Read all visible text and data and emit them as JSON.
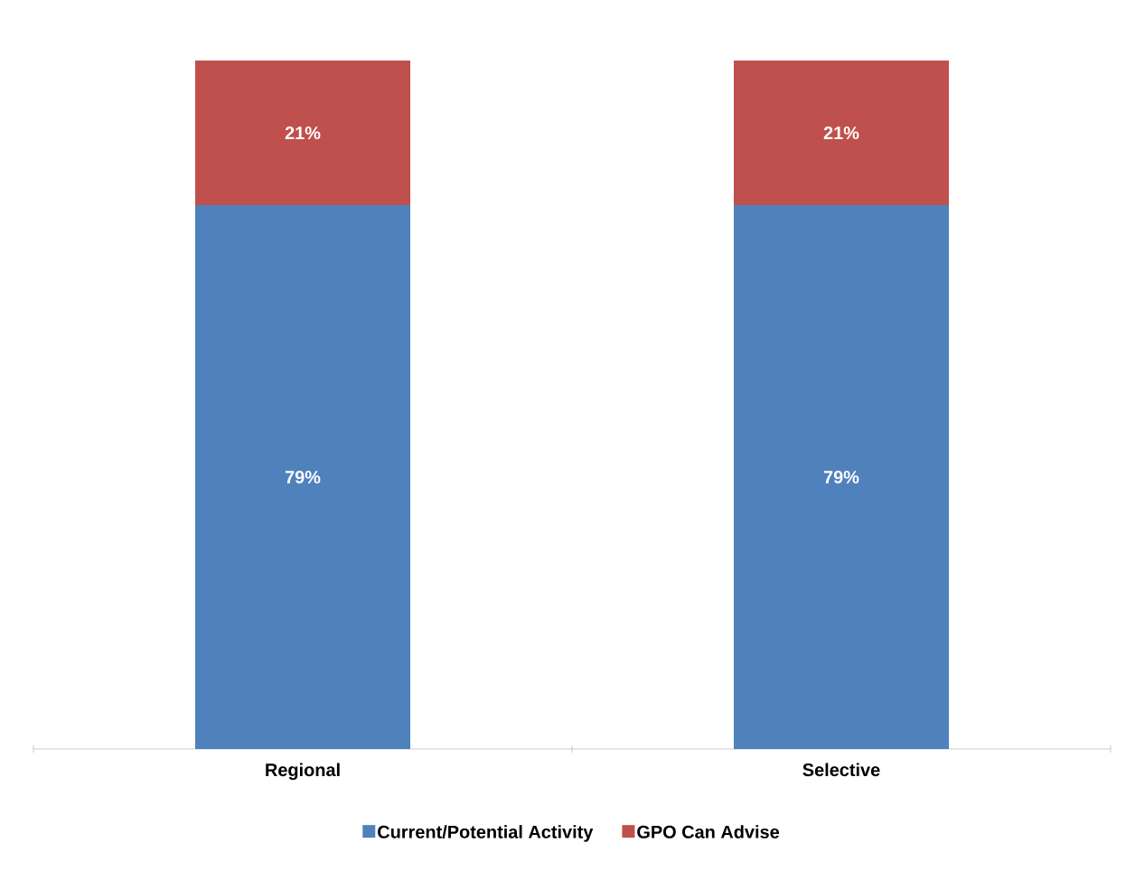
{
  "chart_data": {
    "type": "bar",
    "stacked": true,
    "categories": [
      "Regional",
      "Selective"
    ],
    "series": [
      {
        "name": "Current/Potential Activity",
        "color": "#4f81bd",
        "values": [
          79,
          79
        ],
        "value_labels": [
          "79%",
          "79%"
        ]
      },
      {
        "name": "GPO Can Advise",
        "color": "#c0504d",
        "values": [
          21,
          21
        ],
        "value_labels": [
          "21%",
          "21%"
        ]
      }
    ],
    "legend": "bottom"
  }
}
